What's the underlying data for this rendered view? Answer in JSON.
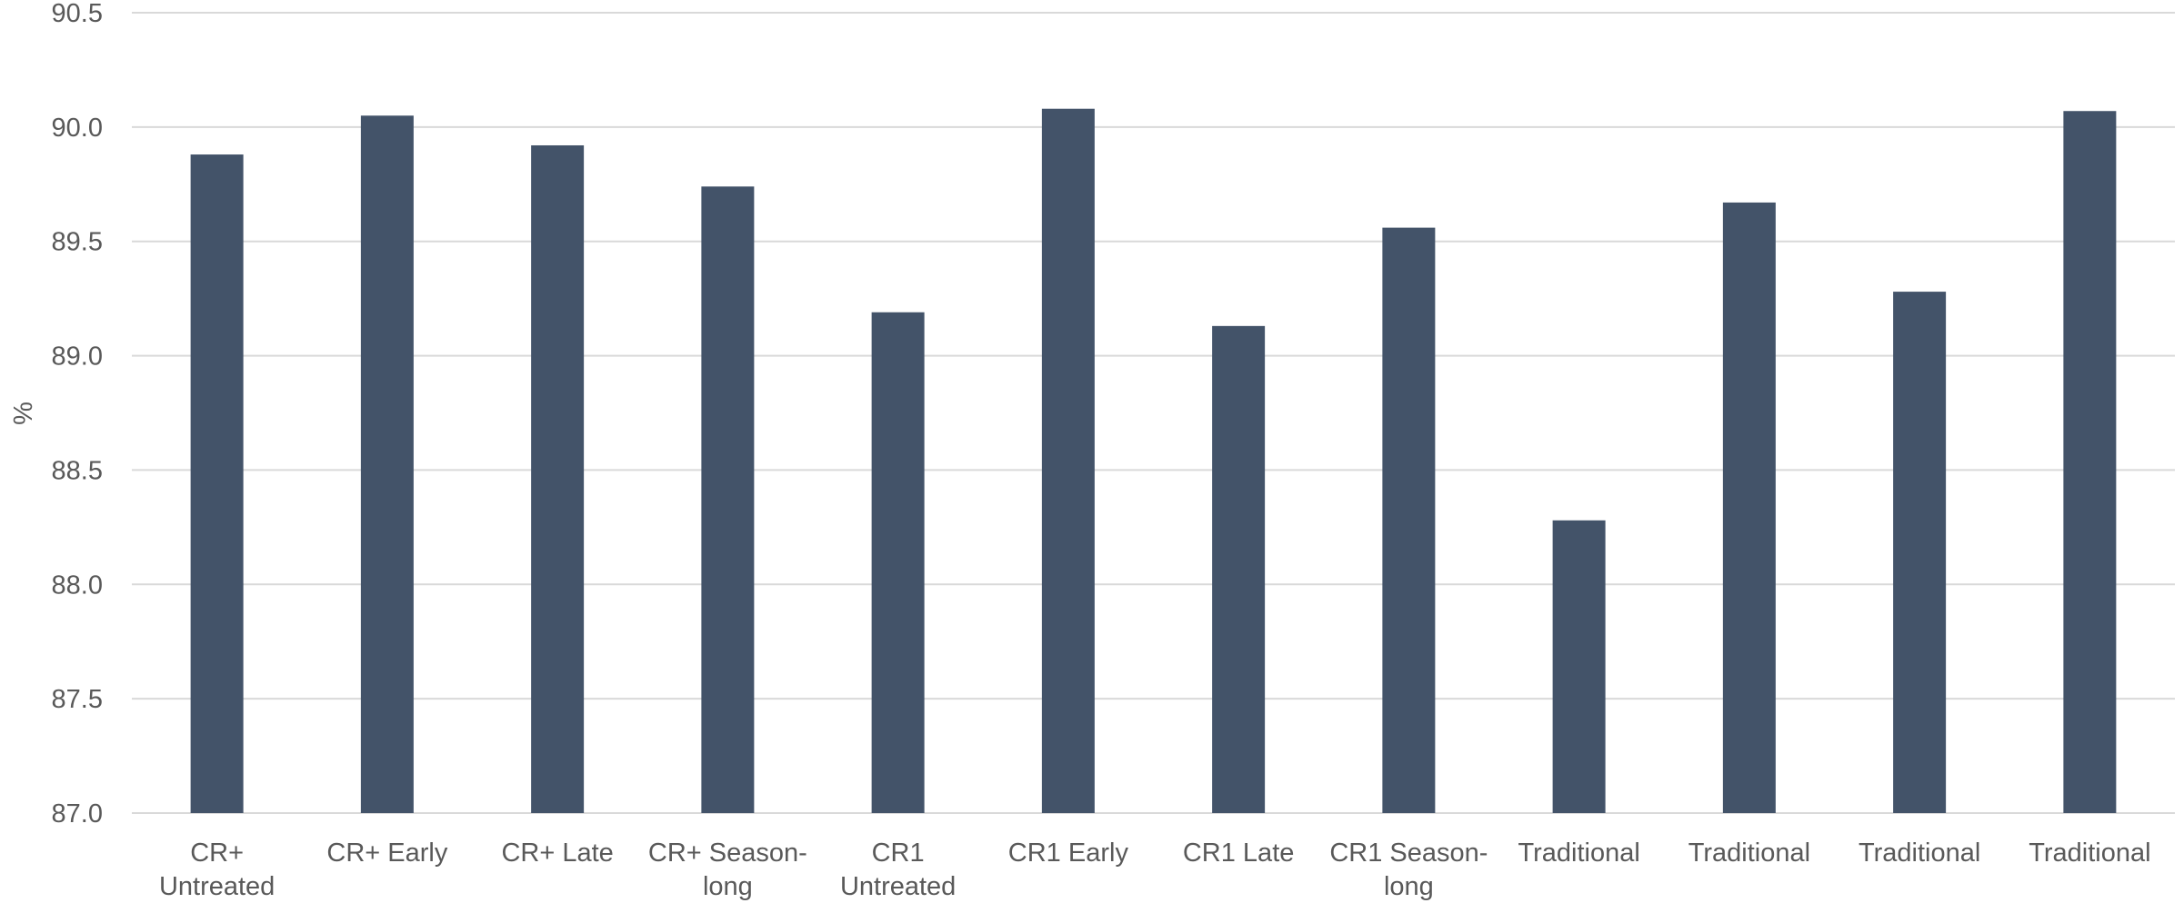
{
  "chart_data": {
    "type": "bar",
    "title": "",
    "xlabel": "",
    "ylabel": "%",
    "ylim": [
      87.0,
      90.5
    ],
    "yticks": [
      "87.0",
      "87.5",
      "88.0",
      "88.5",
      "89.0",
      "89.5",
      "90.0",
      "90.5"
    ],
    "grid": true,
    "legend": "none",
    "bar_color": "#435369",
    "gridline_color": "#d9d9d9",
    "categories": [
      [
        "CR+",
        "Untreated"
      ],
      [
        "CR+ Early"
      ],
      [
        "CR+ Late"
      ],
      [
        "CR+ Season-",
        "long"
      ],
      [
        "CR1",
        "Untreated"
      ],
      [
        "CR1 Early"
      ],
      [
        "CR1 Late"
      ],
      [
        "CR1 Season-",
        "long"
      ],
      [
        "Traditional"
      ],
      [
        "Traditional"
      ],
      [
        "Traditional"
      ],
      [
        "Traditional"
      ]
    ],
    "values": [
      89.88,
      90.05,
      89.92,
      89.74,
      89.19,
      90.08,
      89.13,
      89.56,
      88.28,
      89.67,
      89.28,
      90.07
    ]
  }
}
